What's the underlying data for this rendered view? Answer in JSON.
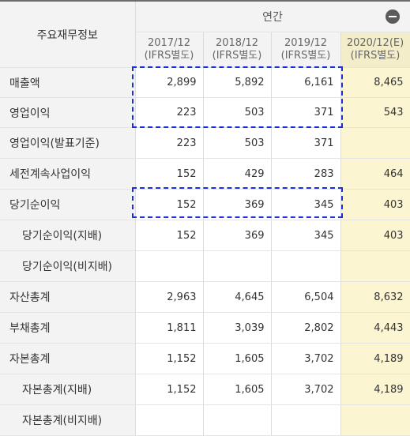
{
  "header": {
    "corner_label": "주요재무정보",
    "period_label": "연간",
    "columns": [
      {
        "year": "2017/12",
        "basis": "(IFRS별도)"
      },
      {
        "year": "2018/12",
        "basis": "(IFRS별도)"
      },
      {
        "year": "2019/12",
        "basis": "(IFRS별도)"
      },
      {
        "year": "2020/12(E)",
        "basis": "(IFRS별도)"
      }
    ]
  },
  "rows": [
    {
      "label": "매출액",
      "values": [
        "2,899",
        "5,892",
        "6,161",
        "8,465"
      ]
    },
    {
      "label": "영업이익",
      "values": [
        "223",
        "503",
        "371",
        "543"
      ]
    },
    {
      "label": "영업이익(발표기준)",
      "values": [
        "223",
        "503",
        "371",
        ""
      ]
    },
    {
      "label": "세전계속사업이익",
      "values": [
        "152",
        "429",
        "283",
        "464"
      ]
    },
    {
      "label": "당기순이익",
      "values": [
        "152",
        "369",
        "345",
        "403"
      ]
    },
    {
      "label": "당기순이익(지배)",
      "values": [
        "152",
        "369",
        "345",
        "403"
      ]
    },
    {
      "label": "당기순이익(비지배)",
      "values": [
        "",
        "",
        "",
        ""
      ]
    },
    {
      "label": "자산총계",
      "values": [
        "2,963",
        "4,645",
        "6,504",
        "8,632"
      ]
    },
    {
      "label": "부채총계",
      "values": [
        "1,811",
        "3,039",
        "2,802",
        "4,443"
      ]
    },
    {
      "label": "자본총계",
      "values": [
        "1,152",
        "1,605",
        "3,702",
        "4,189"
      ]
    },
    {
      "label": "자본총계(지배)",
      "values": [
        "1,152",
        "1,605",
        "3,702",
        "4,189"
      ]
    },
    {
      "label": "자본총계(비지배)",
      "values": [
        "",
        "",
        "",
        ""
      ]
    }
  ],
  "highlight_color": "#1f2fd6",
  "estimate_column_color": "#fbf5d2"
}
